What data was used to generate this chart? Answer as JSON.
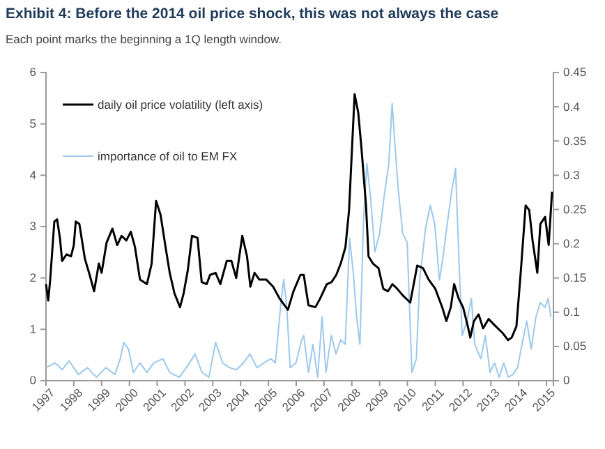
{
  "chart_data": {
    "type": "line",
    "title": "Exhibit 4: Before the 2014 oil price shock, this was not always the case",
    "subtitle": "Each point marks the beginning a 1Q length window.",
    "xlim": [
      1997,
      2015.25
    ],
    "xticks": [
      1997,
      1998,
      1999,
      2000,
      2001,
      2002,
      2003,
      2004,
      2005,
      2006,
      2007,
      2008,
      2009,
      2010,
      2011,
      2012,
      2013,
      2014,
      2015
    ],
    "ylim": [
      0,
      6
    ],
    "yticks": [
      0,
      1,
      2,
      3,
      4,
      5,
      6
    ],
    "y2lim": [
      0,
      0.45
    ],
    "y2ticks": [
      0,
      0.05,
      0.1,
      0.15,
      0.2,
      0.25,
      0.3,
      0.35,
      0.4,
      0.45
    ],
    "legend": "top left",
    "grid": false,
    "series": [
      {
        "name": "importance of oil to EM FX",
        "color": "#9dc8ec",
        "axis": "y2",
        "x": [
          1997.0,
          1997.33,
          1997.58,
          1997.83,
          1998.16,
          1998.49,
          1998.82,
          1999.15,
          1999.48,
          1999.67,
          1999.8,
          1999.97,
          2000.14,
          2000.38,
          2000.63,
          2000.88,
          2001.2,
          2001.45,
          2001.79,
          2002.1,
          2002.36,
          2002.61,
          2002.86,
          2003.1,
          2003.35,
          2003.6,
          2003.85,
          2004.1,
          2004.34,
          2004.59,
          2004.84,
          2005.09,
          2005.25,
          2005.45,
          2005.55,
          2005.66,
          2005.78,
          2005.99,
          2006.2,
          2006.27,
          2006.44,
          2006.6,
          2006.77,
          2006.93,
          2007.07,
          2007.26,
          2007.43,
          2007.6,
          2007.76,
          2007.92,
          2008.06,
          2008.17,
          2008.29,
          2008.42,
          2008.54,
          2008.67,
          2008.83,
          2009.0,
          2009.16,
          2009.33,
          2009.45,
          2009.54,
          2009.66,
          2009.83,
          2009.99,
          2010.16,
          2010.32,
          2010.44,
          2010.65,
          2010.82,
          2010.98,
          2011.15,
          2011.26,
          2011.43,
          2011.59,
          2011.73,
          2011.86,
          2011.97,
          2012.14,
          2012.3,
          2012.42,
          2012.64,
          2012.8,
          2012.97,
          2013.13,
          2013.3,
          2013.46,
          2013.63,
          2013.79,
          2013.96,
          2014.12,
          2014.29,
          2014.45,
          2014.62,
          2014.78,
          2014.95,
          2015.06,
          2015.16
        ],
        "values": [
          0.019,
          0.026,
          0.016,
          0.029,
          0.009,
          0.019,
          0.005,
          0.019,
          0.009,
          0.032,
          0.056,
          0.046,
          0.012,
          0.026,
          0.012,
          0.026,
          0.032,
          0.012,
          0.005,
          0.022,
          0.039,
          0.012,
          0.005,
          0.056,
          0.026,
          0.019,
          0.016,
          0.026,
          0.039,
          0.019,
          0.026,
          0.032,
          0.026,
          0.114,
          0.148,
          0.107,
          0.019,
          0.026,
          0.06,
          0.066,
          0.012,
          0.053,
          0.005,
          0.093,
          0.012,
          0.066,
          0.039,
          0.06,
          0.053,
          0.208,
          0.154,
          0.093,
          0.053,
          0.235,
          0.317,
          0.269,
          0.188,
          0.215,
          0.269,
          0.317,
          0.405,
          0.35,
          0.283,
          0.215,
          0.202,
          0.012,
          0.032,
          0.147,
          0.222,
          0.256,
          0.229,
          0.147,
          0.175,
          0.229,
          0.276,
          0.31,
          0.168,
          0.066,
          0.087,
          0.12,
          0.053,
          0.032,
          0.066,
          0.012,
          0.026,
          0.005,
          0.026,
          0.005,
          0.009,
          0.019,
          0.053,
          0.087,
          0.046,
          0.093,
          0.114,
          0.107,
          0.12,
          0.093
        ]
      },
      {
        "name": "daily oil price volatility (left axis)",
        "color": "#000000",
        "x": [
          1997.0,
          1997.08,
          1997.15,
          1997.3,
          1997.4,
          1997.5,
          1997.58,
          1997.74,
          1997.9,
          1998.0,
          1998.07,
          1998.2,
          1998.4,
          1998.57,
          1998.73,
          1998.9,
          1999.0,
          1999.18,
          1999.39,
          1999.56,
          1999.72,
          1999.89,
          2000.05,
          2000.2,
          2000.38,
          2000.63,
          2000.8,
          2000.96,
          2001.12,
          2001.3,
          2001.45,
          2001.62,
          2001.82,
          2001.95,
          2002.1,
          2002.25,
          2002.45,
          2002.6,
          2002.78,
          2002.9,
          2003.1,
          2003.27,
          2003.5,
          2003.67,
          2003.84,
          2004.06,
          2004.23,
          2004.35,
          2004.5,
          2004.67,
          2004.92,
          2005.17,
          2005.4,
          2005.7,
          2005.9,
          2006.15,
          2006.27,
          2006.44,
          2006.69,
          2006.86,
          2007.1,
          2007.27,
          2007.44,
          2007.6,
          2007.77,
          2007.9,
          2008.02,
          2008.1,
          2008.23,
          2008.35,
          2008.51,
          2008.6,
          2008.76,
          2008.96,
          2009.13,
          2009.3,
          2009.46,
          2009.63,
          2009.85,
          2010.1,
          2010.35,
          2010.56,
          2010.76,
          2011.0,
          2011.25,
          2011.4,
          2011.56,
          2011.68,
          2011.84,
          2012.0,
          2012.17,
          2012.26,
          2012.39,
          2012.56,
          2012.72,
          2012.92,
          2013.17,
          2013.42,
          2013.62,
          2013.75,
          2013.92,
          2014.08,
          2014.25,
          2014.38,
          2014.5,
          2014.67,
          2014.78,
          2014.95,
          2015.08,
          2015.2
        ],
        "values": [
          1.88,
          1.56,
          1.96,
          3.1,
          3.14,
          2.78,
          2.33,
          2.46,
          2.42,
          2.64,
          3.1,
          3.05,
          2.37,
          2.06,
          1.74,
          2.28,
          2.1,
          2.69,
          2.96,
          2.64,
          2.82,
          2.73,
          2.9,
          2.6,
          1.97,
          1.88,
          2.28,
          3.5,
          3.23,
          2.6,
          2.1,
          1.7,
          1.43,
          1.7,
          2.15,
          2.82,
          2.78,
          1.92,
          1.88,
          2.06,
          2.1,
          1.88,
          2.33,
          2.33,
          2.0,
          2.82,
          2.42,
          1.83,
          2.1,
          1.97,
          1.97,
          1.83,
          1.6,
          1.38,
          1.74,
          2.06,
          2.06,
          1.47,
          1.43,
          1.6,
          1.88,
          1.92,
          2.06,
          2.28,
          2.6,
          3.32,
          4.68,
          5.58,
          5.22,
          4.5,
          3.41,
          2.42,
          2.28,
          2.19,
          1.79,
          1.74,
          1.88,
          1.79,
          1.65,
          1.52,
          2.24,
          2.19,
          1.97,
          1.79,
          1.43,
          1.16,
          1.43,
          1.88,
          1.6,
          1.43,
          1.06,
          0.84,
          1.16,
          1.29,
          1.02,
          1.2,
          1.06,
          0.93,
          0.79,
          0.84,
          1.06,
          2.15,
          3.41,
          3.32,
          2.73,
          2.1,
          3.05,
          3.19,
          2.64,
          3.68
        ]
      }
    ]
  }
}
